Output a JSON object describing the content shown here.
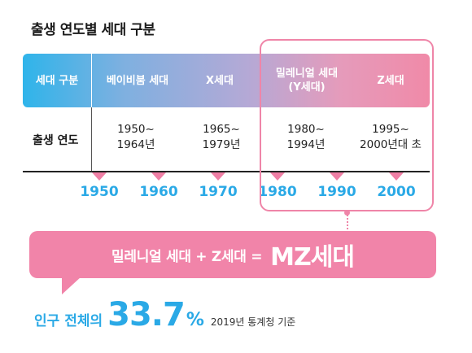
{
  "title": "출생 연도별 세대 구분",
  "header": {
    "category_label": "세대 구분",
    "generations": [
      "베이비붐 세대",
      "X세대",
      "밀레니얼 세대\n(Y세대)",
      "Z세대"
    ]
  },
  "row": {
    "label": "출생 연도",
    "ranges": [
      "1950~\n1964년",
      "1965~\n1979년",
      "1980~\n1994년",
      "1995~\n2000년대 초"
    ]
  },
  "timeline": {
    "decades": [
      "1950",
      "1960",
      "1970",
      "1980",
      "1990",
      "2000"
    ]
  },
  "banner": {
    "formula": "밀레니얼 세대 + Z세대 =",
    "result": "MZ세대"
  },
  "footer": {
    "label": "인구 전체의",
    "value": "33.7",
    "unit": "%",
    "note": "2019년 통계청 기준"
  },
  "colors": {
    "accent_pink": "#f184a9",
    "accent_blue": "#2aa9e6"
  }
}
